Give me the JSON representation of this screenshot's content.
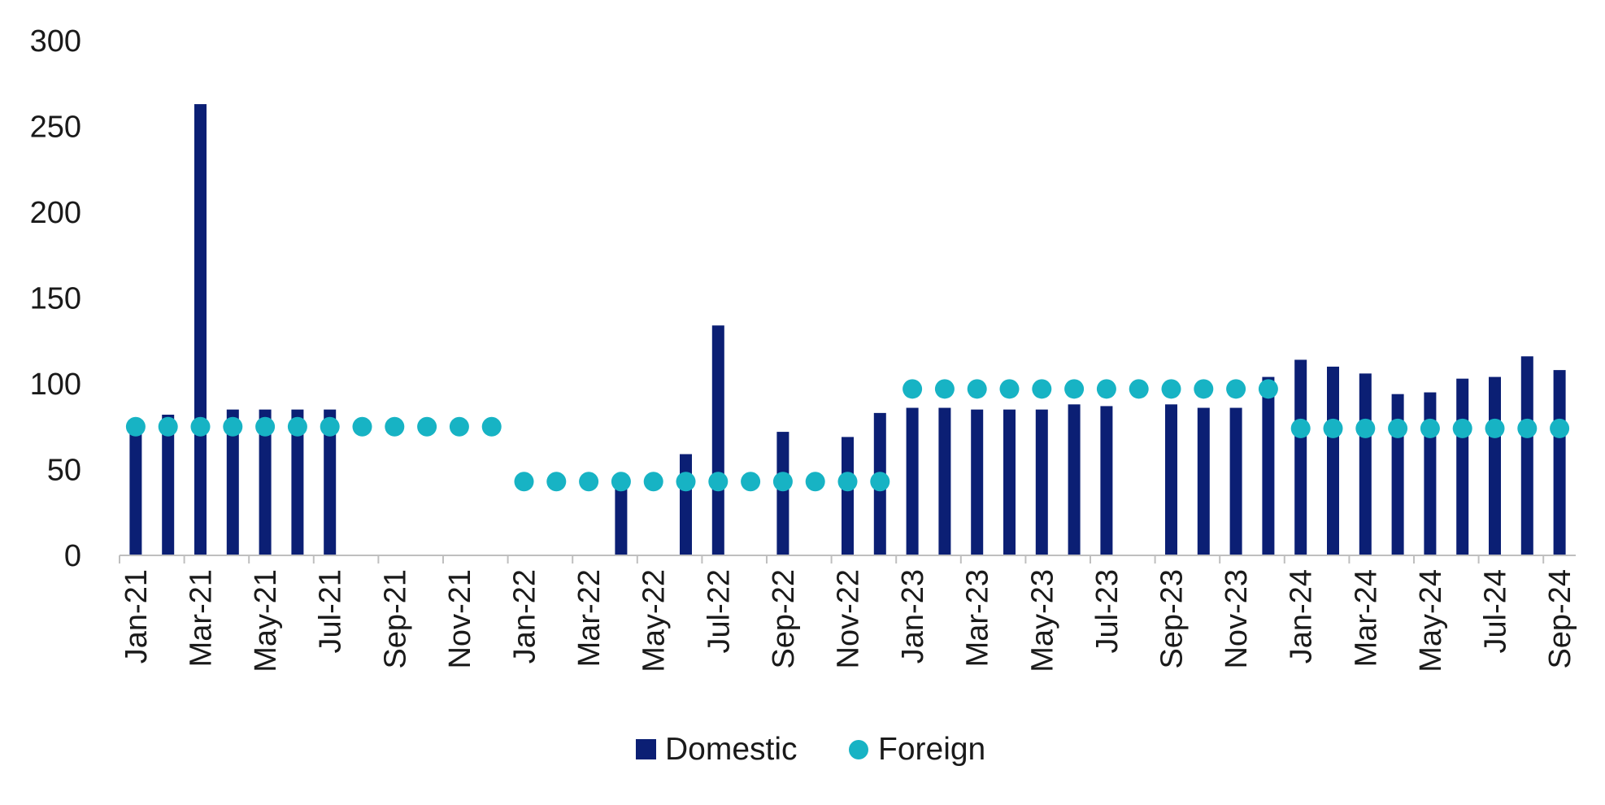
{
  "chart_data": {
    "type": "bar",
    "title": "",
    "xlabel": "",
    "ylabel": "",
    "ylim": [
      0,
      300
    ],
    "yticks": [
      0,
      50,
      100,
      150,
      200,
      250,
      300
    ],
    "grid": false,
    "legend_position": "bottom-center",
    "categories": [
      "Jan-21",
      "Feb-21",
      "Mar-21",
      "Apr-21",
      "May-21",
      "Jun-21",
      "Jul-21",
      "Aug-21",
      "Sep-21",
      "Oct-21",
      "Nov-21",
      "Dec-21",
      "Jan-22",
      "Feb-22",
      "Mar-22",
      "Apr-22",
      "May-22",
      "Jun-22",
      "Jul-22",
      "Aug-22",
      "Sep-22",
      "Oct-22",
      "Nov-22",
      "Dec-22",
      "Jan-23",
      "Feb-23",
      "Mar-23",
      "Apr-23",
      "May-23",
      "Jun-23",
      "Jul-23",
      "Aug-23",
      "Sep-23",
      "Oct-23",
      "Nov-23",
      "Dec-23",
      "Jan-24",
      "Feb-24",
      "Mar-24",
      "Apr-24",
      "May-24",
      "Jun-24",
      "Jul-24",
      "Aug-24",
      "Sep-24"
    ],
    "tick_labels": [
      "Jan-21",
      "Mar-21",
      "May-21",
      "Jul-21",
      "Sep-21",
      "Nov-21",
      "Jan-22",
      "Mar-22",
      "May-22",
      "Jul-22",
      "Sep-22",
      "Nov-22",
      "Jan-23",
      "Mar-23",
      "May-23",
      "Jul-23",
      "Sep-23",
      "Nov-23",
      "Jan-24",
      "Mar-24",
      "May-24",
      "Jul-24",
      "Sep-24"
    ],
    "series": [
      {
        "name": "Domestic",
        "type": "bar",
        "color": "#0b1f74",
        "values": [
          76,
          82,
          263,
          85,
          85,
          85,
          85,
          null,
          null,
          null,
          null,
          null,
          null,
          null,
          null,
          43,
          null,
          59,
          134,
          null,
          72,
          null,
          69,
          83,
          86,
          86,
          85,
          85,
          85,
          88,
          87,
          null,
          88,
          86,
          86,
          104,
          114,
          110,
          106,
          94,
          95,
          103,
          104,
          116,
          108
        ]
      },
      {
        "name": "Foreign",
        "type": "scatter",
        "color": "#17b3c4",
        "values": [
          75,
          75,
          75,
          75,
          75,
          75,
          75,
          75,
          75,
          75,
          75,
          75,
          43,
          43,
          43,
          43,
          43,
          43,
          43,
          43,
          43,
          43,
          43,
          43,
          97,
          97,
          97,
          97,
          97,
          97,
          97,
          97,
          97,
          97,
          97,
          97,
          74,
          74,
          74,
          74,
          74,
          74,
          74,
          74,
          74
        ]
      }
    ]
  }
}
